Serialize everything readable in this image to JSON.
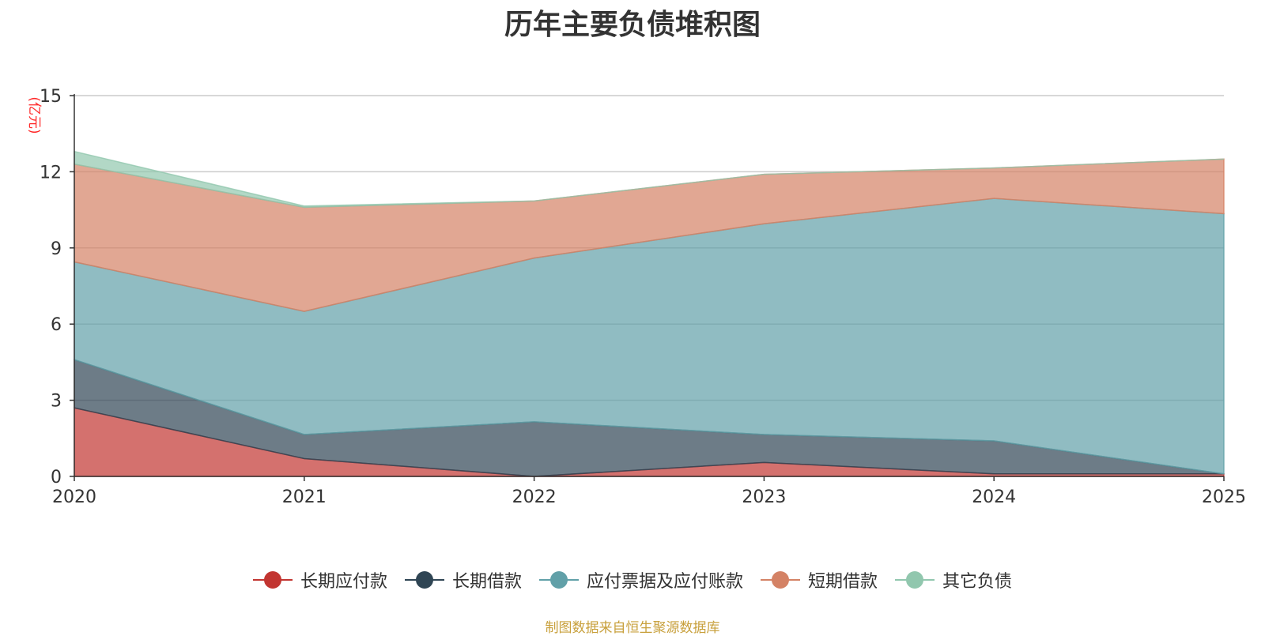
{
  "title": "历年主要负债堆积图",
  "source": "制图数据来自恒生聚源数据库",
  "chart_data": {
    "type": "area",
    "stacked": true,
    "title": "历年主要负债堆积图",
    "ylabel": "(亿元)",
    "xlabel": "",
    "categories": [
      "2020",
      "2021",
      "2022",
      "2023",
      "2024",
      "2025"
    ],
    "ylim": [
      0,
      15
    ],
    "yticks": [
      "0",
      "3",
      "6",
      "9",
      "12",
      "15"
    ],
    "grid": true,
    "legend_position": "bottom",
    "series": [
      {
        "name": "长期应付款",
        "color": "#c23531",
        "values": [
          2.7,
          0.7,
          0.0,
          0.55,
          0.1,
          0.1
        ]
      },
      {
        "name": "长期借款",
        "color": "#2f4554",
        "values": [
          1.9,
          0.95,
          2.15,
          1.1,
          1.3,
          0.0
        ]
      },
      {
        "name": "应付票据及应付账款",
        "color": "#61a0a8",
        "values": [
          3.85,
          4.85,
          6.45,
          8.3,
          9.55,
          10.25
        ]
      },
      {
        "name": "短期借款",
        "color": "#d48265",
        "values": [
          3.85,
          4.1,
          2.25,
          1.95,
          1.2,
          2.15
        ]
      },
      {
        "name": "其它负债",
        "color": "#91c7ae",
        "values": [
          0.5,
          0.05,
          0.0,
          0.0,
          0.0,
          0.0
        ]
      }
    ]
  }
}
